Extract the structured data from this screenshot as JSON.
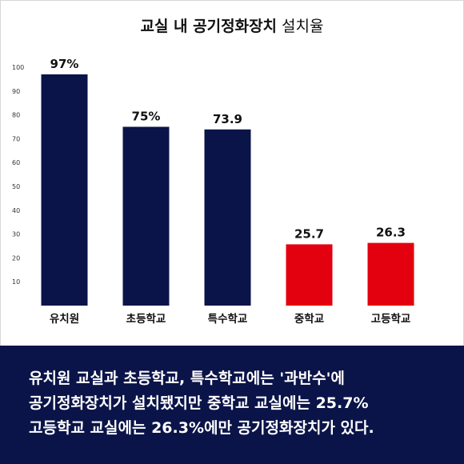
{
  "title": {
    "main": "교실 내 공기정화장치",
    "sub": "설치율"
  },
  "chart_data": {
    "type": "bar",
    "categories": [
      "유치원",
      "초등학교",
      "특수학교",
      "중학교",
      "고등학교"
    ],
    "values": [
      97,
      75,
      73.9,
      25.7,
      26.3
    ],
    "value_labels": [
      "97%",
      "75%",
      "73.9",
      "25.7",
      "26.3"
    ],
    "colors": [
      "#0b1448",
      "#0b1448",
      "#0b1448",
      "#e3000f",
      "#e3000f"
    ],
    "ylim": [
      0,
      100
    ],
    "yticks": [
      10,
      20,
      30,
      40,
      50,
      60,
      70,
      80,
      90,
      100
    ],
    "grid": false,
    "xlabel": "",
    "ylabel": ""
  },
  "caption": {
    "lines": [
      "유치원 교실과 초등학교, 특수학교에는 '과반수'에",
      "공기정화장치가 설치됐지만 중학교 교실에는 25.7%",
      "고등학교 교실에는 26.3%에만 공기정화장치가 있다."
    ],
    "background": "#0b1448"
  }
}
